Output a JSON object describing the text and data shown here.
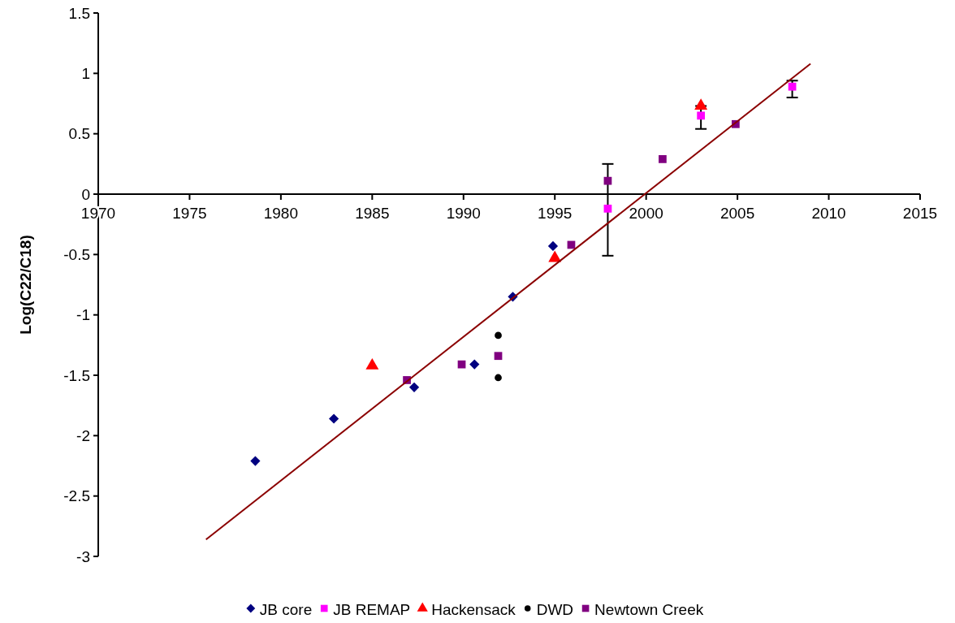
{
  "chart_data": {
    "type": "scatter",
    "ylabel": "Log(C22/C18)",
    "xlim": [
      1970,
      2015
    ],
    "xticks": [
      1970,
      1975,
      1980,
      1985,
      1990,
      1995,
      2000,
      2005,
      2010,
      2015
    ],
    "ylim": [
      -3,
      1.5
    ],
    "yticks": [
      -3,
      -2.5,
      -2,
      -1.5,
      -1,
      -0.5,
      0,
      0.5,
      1,
      1.5
    ],
    "grid": false,
    "legend": "bottom",
    "series": [
      {
        "name": "JB core",
        "color": "#000080",
        "marker": "diamond",
        "x": [
          1978.6,
          1982.9,
          1987.3,
          1990.6,
          1992.7,
          1994.9
        ],
        "values": [
          -2.21,
          -1.86,
          -1.6,
          -1.41,
          -0.85,
          -0.43
        ]
      },
      {
        "name": "JB REMAP",
        "color": "#ff00ff",
        "marker": "square",
        "x": [
          1997.9,
          2003,
          2008
        ],
        "values": [
          -0.12,
          0.65,
          0.89
        ],
        "errors": [
          [
            -0.51,
            0.25
          ],
          [
            0.54,
            0.73
          ],
          [
            0.8,
            0.94
          ]
        ]
      },
      {
        "name": "Hackensack",
        "color": "#ff0000",
        "marker": "triangle",
        "x": [
          1985,
          1995,
          2003
        ],
        "values": [
          -1.42,
          -0.53,
          0.73
        ]
      },
      {
        "name": "DWD",
        "color": "#000000",
        "marker": "circle",
        "x": [
          1991.9,
          1991.9
        ],
        "values": [
          -1.17,
          -1.52
        ]
      },
      {
        "name": "Newtown Creek",
        "color": "#800080",
        "marker": "square",
        "x": [
          1986.9,
          1989.9,
          1991.9,
          1995.9,
          1997.9,
          2000.9,
          2004.9
        ],
        "values": [
          -1.54,
          -1.41,
          -1.34,
          -0.42,
          0.11,
          0.29,
          0.58
        ]
      },
      {
        "type": "line",
        "color": "#8b0000",
        "line_style": "solid",
        "x": [
          1975.9,
          2009
        ],
        "values": [
          -2.86,
          1.08
        ]
      }
    ]
  }
}
